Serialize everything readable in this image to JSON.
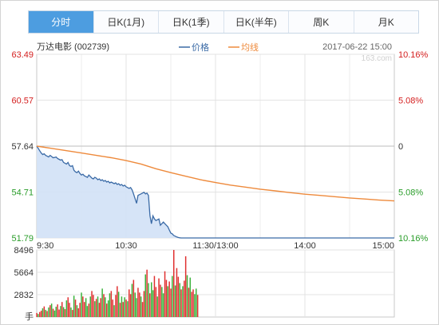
{
  "tabs": [
    "分时",
    "日K(1月)",
    "日K(1季)",
    "日K(半年)",
    "周K",
    "月K"
  ],
  "stock_label": "万达电影 (002739)",
  "timestamp": "2017-06-22 15:00",
  "watermark": "163.com",
  "colors": {
    "price_line": "#3a6aa6",
    "price_fill": "#d2e1f6",
    "avg_line": "#ee8a3c",
    "up": "#d42020",
    "down": "#2a9d2a",
    "prev_close_line": "#bdbdbd",
    "volume_up": "#e03030",
    "volume_down": "#3bb23b"
  },
  "chart_data": [
    {
      "type": "line",
      "title": "",
      "series": [
        {
          "name": "价格",
          "x": [
            0,
            1,
            2,
            3,
            4,
            5,
            6,
            7,
            8,
            9,
            10,
            11,
            12,
            13,
            14,
            15,
            16,
            17,
            18,
            19,
            20,
            21,
            22,
            23,
            24,
            25,
            26,
            27,
            28,
            29,
            30,
            31,
            32,
            33,
            34,
            35,
            36,
            37,
            38,
            39,
            40,
            41,
            42,
            43,
            44,
            45,
            46,
            47,
            48,
            49,
            50,
            51,
            52,
            53,
            54,
            55,
            56,
            57,
            58,
            59,
            60,
            61,
            62,
            63,
            64,
            65,
            66,
            67,
            68,
            69,
            70,
            71,
            72,
            73,
            74,
            75,
            76,
            77,
            78,
            79,
            80,
            81,
            82,
            83,
            84,
            85,
            86,
            87,
            88,
            89,
            90,
            91,
            92,
            93,
            94,
            95,
            96,
            97,
            98,
            99,
            100,
            101,
            102,
            103,
            104,
            105,
            106,
            107,
            108,
            109,
            110,
            111,
            112,
            113,
            114,
            115,
            116,
            117,
            118,
            119,
            120,
            121,
            122,
            123,
            124,
            125,
            126,
            127,
            128,
            129,
            130,
            131,
            132,
            133,
            134,
            135,
            136,
            137,
            138,
            139,
            140,
            141,
            142,
            143,
            144,
            145,
            146,
            147,
            148,
            149,
            150,
            151,
            152,
            153,
            154,
            155,
            156,
            157,
            158,
            159,
            160,
            161,
            162,
            163,
            164,
            165,
            166,
            167,
            168,
            169,
            170,
            171,
            172,
            173,
            174,
            175,
            176,
            177,
            178,
            179,
            180,
            181,
            182,
            183,
            184,
            185,
            186,
            187,
            188,
            189,
            190,
            191,
            192,
            193,
            194,
            195,
            196,
            197,
            198,
            199,
            200,
            201,
            202,
            203,
            204,
            205,
            206,
            207,
            208,
            209,
            210,
            211,
            212,
            213,
            214,
            215,
            216,
            217,
            218,
            219,
            220,
            221,
            222,
            223,
            224,
            225,
            226,
            227,
            228,
            229,
            230,
            231,
            232,
            233,
            234,
            235,
            236,
            237,
            238,
            239,
            240
          ],
          "values": [
            57.64,
            57.5,
            57.35,
            57.2,
            57.1,
            57.15,
            57.05,
            57.0,
            56.95,
            57.05,
            56.98,
            56.9,
            56.92,
            56.95,
            56.85,
            56.8,
            56.75,
            56.78,
            56.6,
            56.55,
            56.5,
            56.6,
            56.4,
            56.35,
            56.4,
            56.1,
            56.0,
            55.95,
            56.05,
            55.9,
            55.8,
            55.85,
            55.75,
            55.7,
            55.65,
            55.8,
            55.7,
            55.6,
            55.55,
            55.65,
            55.6,
            55.5,
            55.55,
            55.45,
            55.5,
            55.4,
            55.45,
            55.35,
            55.4,
            55.3,
            55.35,
            55.3,
            55.25,
            55.3,
            55.2,
            55.25,
            55.15,
            55.2,
            55.1,
            55.15,
            55.05,
            55.0,
            54.95,
            55.0,
            54.85,
            54.6,
            54.3,
            54.0,
            54.5,
            54.55,
            54.6,
            54.65,
            54.7,
            54.6,
            54.65,
            54.5,
            53.2,
            52.7,
            53.2,
            53.0,
            52.9,
            52.95,
            53.0,
            52.6,
            52.7,
            52.8,
            52.7,
            52.6,
            52.5,
            52.3,
            52.1,
            52.05,
            51.95,
            51.9,
            51.85,
            51.82,
            51.8,
            51.79,
            51.79,
            51.79,
            51.79,
            51.79,
            51.79,
            51.79,
            51.79,
            51.79,
            51.79,
            51.79,
            51.79,
            51.79,
            51.79,
            51.79,
            51.79,
            51.79,
            51.79,
            51.79,
            51.79,
            51.79,
            51.79,
            51.79,
            51.79,
            51.79,
            51.79,
            51.79,
            51.79,
            51.79,
            51.79,
            51.79,
            51.79,
            51.79,
            51.79,
            51.79,
            51.79,
            51.79,
            51.79,
            51.79,
            51.79,
            51.79,
            51.79,
            51.79,
            51.79,
            51.79,
            51.79,
            51.79,
            51.79,
            51.79,
            51.79,
            51.79,
            51.79,
            51.79,
            51.79,
            51.79,
            51.79,
            51.79,
            51.79,
            51.79,
            51.79,
            51.79,
            51.79,
            51.79,
            51.79,
            51.79,
            51.79,
            51.79,
            51.79,
            51.79,
            51.79,
            51.79,
            51.79,
            51.79,
            51.79,
            51.79,
            51.79,
            51.79,
            51.79,
            51.79,
            51.79,
            51.79,
            51.79,
            51.79,
            51.79,
            51.79,
            51.79,
            51.79,
            51.79,
            51.79,
            51.79,
            51.79,
            51.79,
            51.79,
            51.79,
            51.79,
            51.79,
            51.79,
            51.79,
            51.79,
            51.79,
            51.79,
            51.79,
            51.79,
            51.79,
            51.79,
            51.79,
            51.79,
            51.79,
            51.79,
            51.79,
            51.79,
            51.79,
            51.79,
            51.79,
            51.79,
            51.79,
            51.79,
            51.79,
            51.79,
            51.79,
            51.79,
            51.79,
            51.79,
            51.79,
            51.79,
            51.79,
            51.79,
            51.79,
            51.79,
            51.79,
            51.79,
            51.79,
            51.79,
            51.79,
            51.79,
            51.79,
            51.79,
            51.79,
            51.79,
            51.79,
            51.79,
            51.79,
            51.79,
            51.79
          ]
        },
        {
          "name": "均线",
          "x": [
            0,
            10,
            20,
            30,
            40,
            50,
            60,
            70,
            80,
            90,
            100,
            110,
            120,
            130,
            140,
            150,
            160,
            170,
            180,
            190,
            200,
            210,
            220,
            230,
            240
          ],
          "values": [
            57.64,
            57.5,
            57.35,
            57.2,
            57.05,
            56.9,
            56.72,
            56.5,
            56.2,
            55.95,
            55.72,
            55.5,
            55.32,
            55.16,
            55.03,
            54.9,
            54.79,
            54.68,
            54.58,
            54.5,
            54.42,
            54.34,
            54.27,
            54.2,
            54.15
          ]
        }
      ],
      "x_tick_labels": [
        "9:30",
        "10:30",
        "11:30/13:00",
        "14:00",
        "15:00"
      ],
      "x_tick_positions": [
        0,
        60,
        120,
        180,
        240
      ],
      "y_left_ticks": [
        "63.49",
        "60.57",
        "57.64",
        "54.71",
        "51.79"
      ],
      "y_left_values": [
        63.49,
        60.57,
        57.64,
        54.71,
        51.79
      ],
      "y_right_ticks": [
        "10.16%",
        "5.08%",
        "0",
        "5.08%",
        "10.16%"
      ],
      "ylim": [
        51.79,
        63.49
      ],
      "prev_close": 57.64,
      "legend": [
        "价格",
        "均线"
      ],
      "legend_position": "top-center",
      "grid": true
    },
    {
      "type": "bar",
      "title": "",
      "ylabel": "手",
      "y_tick_labels": [
        "8496",
        "5664",
        "2832"
      ],
      "y_tick_values": [
        8496,
        5664,
        2832
      ],
      "ylim": [
        0,
        8496
      ],
      "x": [
        0,
        1,
        2,
        3,
        4,
        5,
        6,
        7,
        8,
        9,
        10,
        11,
        12,
        13,
        14,
        15,
        16,
        17,
        18,
        19,
        20,
        21,
        22,
        23,
        24,
        25,
        26,
        27,
        28,
        29,
        30,
        31,
        32,
        33,
        34,
        35,
        36,
        37,
        38,
        39,
        40,
        41,
        42,
        43,
        44,
        45,
        46,
        47,
        48,
        49,
        50,
        51,
        52,
        53,
        54,
        55,
        56,
        57,
        58,
        59,
        60,
        61,
        62,
        63,
        64,
        65,
        66,
        67,
        68,
        69,
        70,
        71,
        72,
        73,
        74,
        75,
        76,
        77,
        78,
        79,
        80,
        81,
        82,
        83,
        84,
        85,
        86,
        87,
        88,
        89,
        90,
        91,
        92,
        93,
        94,
        95,
        96,
        97,
        98,
        99,
        100,
        101,
        102,
        103,
        104,
        105,
        106,
        107,
        108,
        109,
        110,
        111,
        112,
        113,
        114,
        115,
        116,
        117,
        118,
        119,
        120
      ],
      "values": [
        520,
        380,
        640,
        800,
        1100,
        1350,
        900,
        760,
        1200,
        1500,
        1700,
        1050,
        820,
        1300,
        1600,
        950,
        1400,
        1900,
        1250,
        1000,
        2100,
        2500,
        1800,
        1200,
        900,
        2700,
        2200,
        1500,
        1100,
        1800,
        3100,
        2600,
        1900,
        2400,
        1400,
        1700,
        2600,
        3300,
        2800,
        2000,
        2300,
        2600,
        1800,
        2400,
        3600,
        2900,
        2500,
        1700,
        2100,
        3000,
        3300,
        2200,
        1500,
        2800,
        3900,
        3200,
        1800,
        2600,
        1900,
        2500,
        2200,
        2000,
        3500,
        2900,
        4200,
        4700,
        3100,
        2400,
        3700,
        3100,
        2600,
        1900,
        3300,
        5400,
        6000,
        4300,
        3000,
        4400,
        3400,
        5200,
        3800,
        2600,
        4900,
        4100,
        3800,
        3000,
        5800,
        4700,
        3900,
        4500,
        3600,
        5200,
        8496,
        4000,
        6200,
        5100,
        4300,
        3500,
        3900,
        4600,
        7700,
        5300,
        3700,
        5000,
        3200,
        3500,
        2900,
        3600,
        2800,
        0,
        0,
        0,
        0,
        0,
        0,
        0,
        0,
        0,
        0,
        0,
        0
      ],
      "bar_up": [
        true,
        false,
        true,
        true,
        false,
        true,
        false,
        true,
        false,
        true,
        false,
        true,
        false,
        false,
        true,
        true,
        false,
        true,
        false,
        true,
        false,
        true,
        true,
        false,
        true,
        false,
        true,
        false,
        true,
        true,
        false,
        true,
        true,
        false,
        false,
        true,
        false,
        true,
        true,
        false,
        true,
        false,
        true,
        true,
        false,
        true,
        false,
        true,
        false,
        false,
        true,
        true,
        false,
        true,
        true,
        false,
        true,
        false,
        true,
        false,
        true,
        false,
        true,
        true,
        false,
        true,
        false,
        false,
        true,
        true,
        false,
        true,
        true,
        false,
        true,
        false,
        true,
        false,
        false,
        true,
        true,
        false,
        true,
        true,
        false,
        false,
        true,
        true,
        false,
        true,
        true,
        false,
        true,
        false,
        true,
        true,
        false,
        true,
        false,
        true,
        true,
        false,
        true,
        false,
        true,
        true,
        false,
        false,
        true,
        true,
        true,
        true,
        true,
        true,
        true,
        true,
        true,
        true,
        true,
        true,
        true
      ]
    }
  ]
}
